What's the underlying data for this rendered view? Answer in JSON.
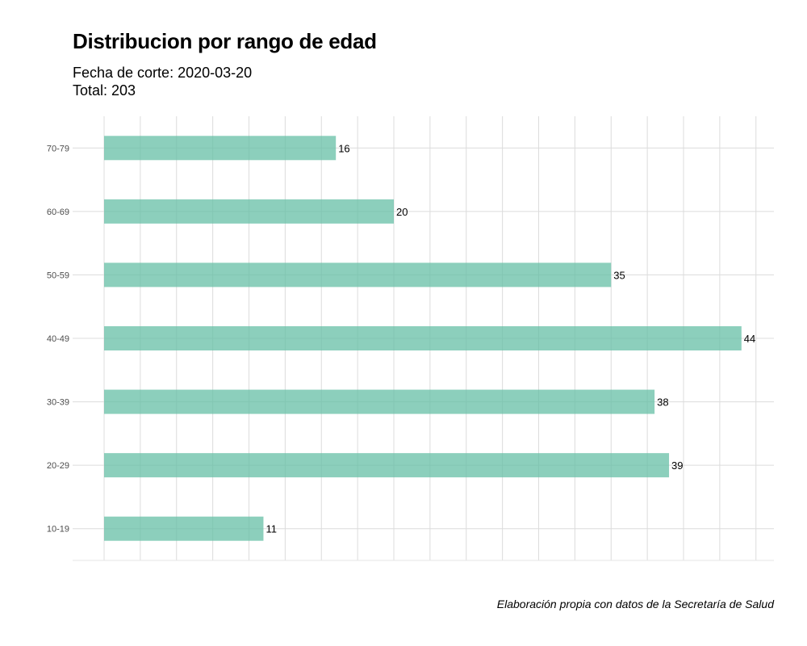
{
  "chart_data": {
    "type": "bar",
    "orientation": "horizontal",
    "title": "Distribucion por rango de edad",
    "subtitle": [
      "Fecha de corte: 2020-03-20",
      "Total: 203"
    ],
    "caption": "Elaboración propia con datos de la Secretaría de Salud",
    "categories": [
      "10-19",
      "20-29",
      "30-39",
      "40-49",
      "50-59",
      "60-69",
      "70-79"
    ],
    "values": [
      11,
      39,
      38,
      44,
      35,
      20,
      16
    ],
    "xlabel": "",
    "ylabel": "",
    "xlim": [
      0,
      45
    ],
    "grid": true,
    "show_x_tick_labels": false,
    "bar_color": "#66BFA6",
    "data_labels": true
  }
}
